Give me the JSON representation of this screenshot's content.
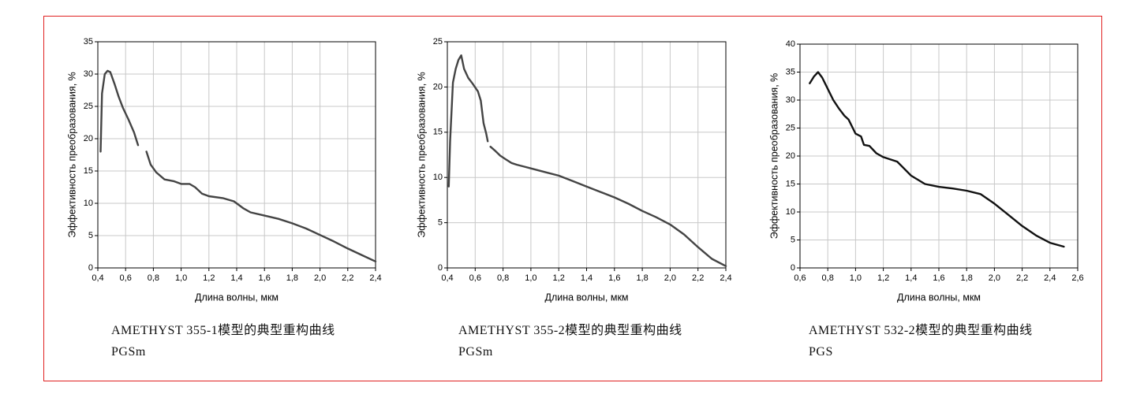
{
  "chart_data": [
    {
      "type": "line",
      "caption": "AMETHYST 355-1模型的典型重构曲线PGSm",
      "x_label": "Длина волны, мкм",
      "y_label": "Эффективность преобразования, %",
      "color": "#444444",
      "grid": true,
      "xlim": [
        0.4,
        2.4
      ],
      "ylim": [
        0,
        35
      ],
      "xticks": [
        {
          "value": 0.4,
          "label": "0,4"
        },
        {
          "value": 0.6,
          "label": "0,6"
        },
        {
          "value": 0.8,
          "label": "0,8"
        },
        {
          "value": 1.0,
          "label": "1,0"
        },
        {
          "value": 1.2,
          "label": "1,2"
        },
        {
          "value": 1.4,
          "label": "1,4"
        },
        {
          "value": 1.6,
          "label": "1,6"
        },
        {
          "value": 1.8,
          "label": "1,8"
        },
        {
          "value": 2.0,
          "label": "2,0"
        },
        {
          "value": 2.2,
          "label": "2,2"
        },
        {
          "value": 2.4,
          "label": "2,4"
        }
      ],
      "yticks": [
        0,
        5,
        10,
        15,
        20,
        25,
        30,
        35
      ],
      "x": [
        0.42,
        0.43,
        0.45,
        0.47,
        0.49,
        0.52,
        0.55,
        0.58,
        0.62,
        0.66,
        0.69,
        0.72,
        0.75,
        0.78,
        0.82,
        0.88,
        0.95,
        1.0,
        1.06,
        1.1,
        1.15,
        1.2,
        1.3,
        1.38,
        1.45,
        1.5,
        1.6,
        1.7,
        1.8,
        1.9,
        2.0,
        2.1,
        2.2,
        2.3,
        2.4
      ],
      "values": [
        18,
        27,
        30,
        30.5,
        30.3,
        28.5,
        26.5,
        24.8,
        23,
        21,
        19,
        null,
        18,
        16,
        14.8,
        13.7,
        13.4,
        13.0,
        13.0,
        12.5,
        11.5,
        11.1,
        10.8,
        10.3,
        9.2,
        8.6,
        8.1,
        7.6,
        6.9,
        6.1,
        5.1,
        4.1,
        3.0,
        2.0,
        1.0
      ]
    },
    {
      "type": "line",
      "caption": "AMETHYST 355-2模型的典型重构曲线PGSm",
      "x_label": "Длина волны, мкм",
      "y_label": "Эффективность преобразования, %",
      "color": "#444444",
      "grid": true,
      "xlim": [
        0.4,
        2.4
      ],
      "ylim": [
        0,
        25
      ],
      "xticks": [
        {
          "value": 0.4,
          "label": "0,4"
        },
        {
          "value": 0.6,
          "label": "0,6"
        },
        {
          "value": 0.8,
          "label": "0,8"
        },
        {
          "value": 1.0,
          "label": "1,0"
        },
        {
          "value": 1.2,
          "label": "1,2"
        },
        {
          "value": 1.4,
          "label": "1,4"
        },
        {
          "value": 1.6,
          "label": "1,6"
        },
        {
          "value": 1.8,
          "label": "1,8"
        },
        {
          "value": 2.0,
          "label": "2,0"
        },
        {
          "value": 2.2,
          "label": "2,2"
        },
        {
          "value": 2.4,
          "label": "2,4"
        }
      ],
      "yticks": [
        0,
        5,
        10,
        15,
        20,
        25
      ],
      "x": [
        0.41,
        0.42,
        0.44,
        0.46,
        0.48,
        0.5,
        0.52,
        0.55,
        0.58,
        0.62,
        0.64,
        0.66,
        0.68,
        0.69,
        0.7,
        0.71,
        0.74,
        0.78,
        0.82,
        0.86,
        0.9,
        0.95,
        1.0,
        1.1,
        1.2,
        1.3,
        1.4,
        1.5,
        1.6,
        1.7,
        1.8,
        1.9,
        2.0,
        2.1,
        2.2,
        2.3,
        2.4
      ],
      "values": [
        9,
        14,
        20.5,
        22,
        23,
        23.5,
        22,
        21,
        20.4,
        19.5,
        18.5,
        16,
        14.8,
        14.0,
        null,
        13.4,
        13,
        12.4,
        12.0,
        11.6,
        11.4,
        11.2,
        11.0,
        10.6,
        10.2,
        9.6,
        9.0,
        8.4,
        7.8,
        7.1,
        6.3,
        5.6,
        4.8,
        3.7,
        2.3,
        1.0,
        0.2
      ]
    },
    {
      "type": "line",
      "caption": "AMETHYST 532-2模型的典型重构曲线PGS",
      "x_label": "Длина волны, мкм",
      "y_label": "Эффективность преобразования, %",
      "color": "#111111",
      "grid": true,
      "xlim": [
        0.6,
        2.6
      ],
      "ylim": [
        0,
        40
      ],
      "xticks": [
        {
          "value": 0.6,
          "label": "0,6"
        },
        {
          "value": 0.8,
          "label": "0,8"
        },
        {
          "value": 1.0,
          "label": "1,0"
        },
        {
          "value": 1.2,
          "label": "1,2"
        },
        {
          "value": 1.4,
          "label": "1,4"
        },
        {
          "value": 1.6,
          "label": "1,6"
        },
        {
          "value": 1.8,
          "label": "1,8"
        },
        {
          "value": 2.0,
          "label": "2,0"
        },
        {
          "value": 2.2,
          "label": "2,2"
        },
        {
          "value": 2.4,
          "label": "2,4"
        },
        {
          "value": 2.6,
          "label": "2,6"
        }
      ],
      "yticks": [
        0,
        5,
        10,
        15,
        20,
        25,
        30,
        35,
        40
      ],
      "x": [
        0.67,
        0.7,
        0.73,
        0.76,
        0.8,
        0.84,
        0.88,
        0.92,
        0.95,
        0.98,
        1.0,
        1.04,
        1.06,
        1.1,
        1.15,
        1.2,
        1.3,
        1.4,
        1.5,
        1.6,
        1.7,
        1.8,
        1.9,
        2.0,
        2.1,
        2.2,
        2.3,
        2.4,
        2.5
      ],
      "values": [
        33,
        34.2,
        35,
        34,
        32,
        30,
        28.5,
        27.2,
        26.5,
        25,
        24,
        23.5,
        22,
        21.8,
        20.5,
        19.8,
        19,
        16.5,
        15,
        14.5,
        14.2,
        13.8,
        13.2,
        11.5,
        9.5,
        7.5,
        5.8,
        4.5,
        3.8
      ]
    }
  ]
}
